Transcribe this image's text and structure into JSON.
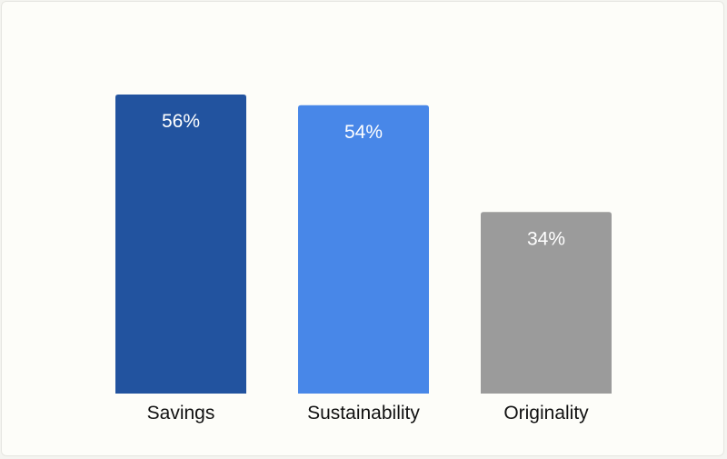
{
  "chart_data": {
    "type": "bar",
    "categories": [
      "Savings",
      "Sustainability",
      "Originality"
    ],
    "values": [
      56,
      54,
      34
    ],
    "value_labels": [
      "56%",
      "54%",
      "34%"
    ],
    "colors": [
      "#22539f",
      "#4887e8",
      "#9b9b9b"
    ],
    "ylim": [
      0,
      56
    ],
    "grid": false,
    "legend": "none"
  }
}
